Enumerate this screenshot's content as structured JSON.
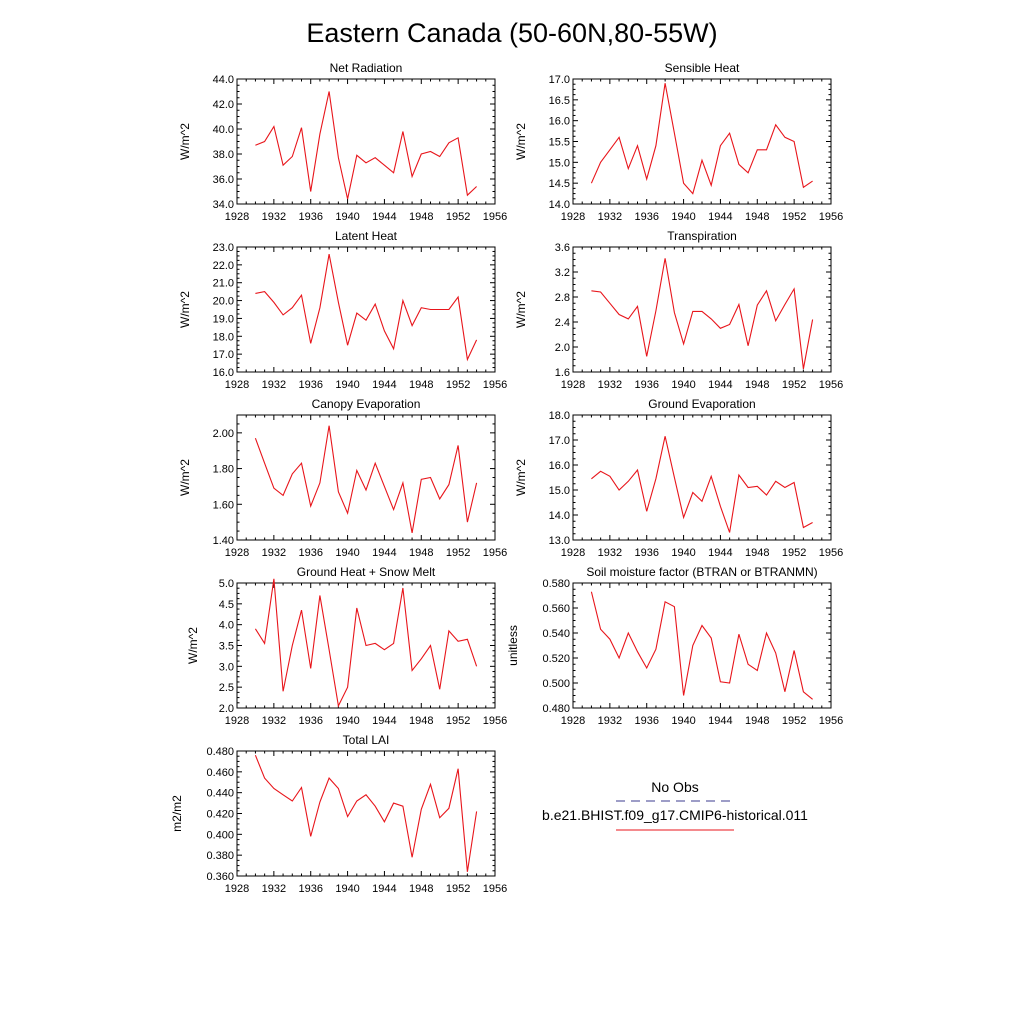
{
  "figure": {
    "title": "Eastern Canada (50-60N,80-55W)",
    "x_ticks": [
      "1928",
      "1932",
      "1936",
      "1940",
      "1944",
      "1948",
      "1952",
      "1956"
    ],
    "line_color": "#e8151b",
    "legend": {
      "obs_label": "No Obs",
      "obs_color": "#3b3b8f",
      "case_label": "b.e21.BHIST.f09_g17.CMIP6-historical.011",
      "case_color": "#e8151b"
    }
  },
  "chart_data": [
    {
      "type": "line",
      "title": "Net Radiation",
      "ylabel": "W/m^2",
      "x": [
        1930,
        1931,
        1932,
        1933,
        1934,
        1935,
        1936,
        1937,
        1938,
        1939,
        1940,
        1941,
        1942,
        1943,
        1944,
        1945,
        1946,
        1947,
        1948,
        1949,
        1950,
        1951,
        1952,
        1953,
        1954
      ],
      "values": [
        38.7,
        39.0,
        40.2,
        37.1,
        37.8,
        40.1,
        35.0,
        39.6,
        43.0,
        37.7,
        34.4,
        37.9,
        37.3,
        37.7,
        37.1,
        36.5,
        39.8,
        36.2,
        38.0,
        38.2,
        37.8,
        38.9,
        39.3,
        34.7,
        35.4
      ],
      "xlim": [
        1928,
        1956
      ],
      "ylim": [
        34.0,
        44.0
      ],
      "yticks": [
        "34.0",
        "36.0",
        "38.0",
        "40.0",
        "42.0",
        "44.0"
      ]
    },
    {
      "type": "line",
      "title": "Sensible Heat",
      "ylabel": "W/m^2",
      "x": [
        1930,
        1931,
        1932,
        1933,
        1934,
        1935,
        1936,
        1937,
        1938,
        1939,
        1940,
        1941,
        1942,
        1943,
        1944,
        1945,
        1946,
        1947,
        1948,
        1949,
        1950,
        1951,
        1952,
        1953,
        1954
      ],
      "values": [
        14.5,
        15.0,
        15.3,
        15.6,
        14.85,
        15.4,
        14.6,
        15.4,
        16.9,
        15.7,
        14.5,
        14.25,
        15.05,
        14.45,
        15.4,
        15.7,
        14.95,
        14.75,
        15.3,
        15.3,
        15.9,
        15.6,
        15.5,
        14.4,
        14.55
      ],
      "xlim": [
        1928,
        1956
      ],
      "ylim": [
        14.0,
        17.0
      ],
      "yticks": [
        "14.0",
        "14.5",
        "15.0",
        "15.5",
        "16.0",
        "16.5",
        "17.0"
      ]
    },
    {
      "type": "line",
      "title": "Latent Heat",
      "ylabel": "W/m^2",
      "x": [
        1930,
        1931,
        1932,
        1933,
        1934,
        1935,
        1936,
        1937,
        1938,
        1939,
        1940,
        1941,
        1942,
        1943,
        1944,
        1945,
        1946,
        1947,
        1948,
        1949,
        1950,
        1951,
        1952,
        1953,
        1954
      ],
      "values": [
        20.4,
        20.5,
        19.9,
        19.2,
        19.6,
        20.3,
        17.6,
        19.6,
        22.6,
        19.9,
        17.5,
        19.3,
        18.9,
        19.8,
        18.3,
        17.3,
        20.0,
        18.6,
        19.6,
        19.5,
        19.5,
        19.5,
        20.2,
        16.7,
        17.8
      ],
      "xlim": [
        1928,
        1956
      ],
      "ylim": [
        16.0,
        23.0
      ],
      "yticks": [
        "16.0",
        "17.0",
        "18.0",
        "19.0",
        "20.0",
        "21.0",
        "22.0",
        "23.0"
      ]
    },
    {
      "type": "line",
      "title": "Transpiration",
      "ylabel": "W/m^2",
      "x": [
        1930,
        1931,
        1932,
        1933,
        1934,
        1935,
        1936,
        1937,
        1938,
        1939,
        1940,
        1941,
        1942,
        1943,
        1944,
        1945,
        1946,
        1947,
        1948,
        1949,
        1950,
        1951,
        1952,
        1953,
        1954
      ],
      "values": [
        2.9,
        2.88,
        2.7,
        2.52,
        2.45,
        2.65,
        1.85,
        2.58,
        3.42,
        2.55,
        2.05,
        2.57,
        2.57,
        2.45,
        2.3,
        2.36,
        2.68,
        2.02,
        2.67,
        2.9,
        2.42,
        2.68,
        2.93,
        1.65,
        2.44
      ],
      "xlim": [
        1928,
        1956
      ],
      "ylim": [
        1.6,
        3.6
      ],
      "yticks": [
        "1.6",
        "2.0",
        "2.4",
        "2.8",
        "3.2",
        "3.6"
      ]
    },
    {
      "type": "line",
      "title": "Canopy Evaporation",
      "ylabel": "W/m^2",
      "x": [
        1930,
        1931,
        1932,
        1933,
        1934,
        1935,
        1936,
        1937,
        1938,
        1939,
        1940,
        1941,
        1942,
        1943,
        1944,
        1945,
        1946,
        1947,
        1948,
        1949,
        1950,
        1951,
        1952,
        1953,
        1954
      ],
      "values": [
        1.97,
        1.83,
        1.69,
        1.65,
        1.77,
        1.83,
        1.59,
        1.72,
        2.04,
        1.67,
        1.55,
        1.79,
        1.68,
        1.83,
        1.7,
        1.57,
        1.72,
        1.44,
        1.74,
        1.75,
        1.63,
        1.71,
        1.93,
        1.5,
        1.72
      ],
      "xlim": [
        1928,
        1956
      ],
      "ylim": [
        1.4,
        2.1
      ],
      "yticks": [
        "1.40",
        "1.60",
        "1.80",
        "2.00"
      ]
    },
    {
      "type": "line",
      "title": "Ground Evaporation",
      "ylabel": "W/m^2",
      "x": [
        1930,
        1931,
        1932,
        1933,
        1934,
        1935,
        1936,
        1937,
        1938,
        1939,
        1940,
        1941,
        1942,
        1943,
        1944,
        1945,
        1946,
        1947,
        1948,
        1949,
        1950,
        1951,
        1952,
        1953,
        1954
      ],
      "values": [
        15.45,
        15.75,
        15.55,
        15.0,
        15.35,
        15.8,
        14.15,
        15.45,
        17.15,
        15.5,
        13.9,
        14.9,
        14.55,
        15.55,
        14.35,
        13.3,
        15.6,
        15.1,
        15.15,
        14.8,
        15.35,
        15.1,
        15.3,
        13.5,
        13.7
      ],
      "xlim": [
        1928,
        1956
      ],
      "ylim": [
        13.0,
        18.0
      ],
      "yticks": [
        "13.0",
        "14.0",
        "15.0",
        "16.0",
        "17.0",
        "18.0"
      ]
    },
    {
      "type": "line",
      "title": "Ground Heat + Snow Melt",
      "ylabel": "W/m^2",
      "x": [
        1930,
        1931,
        1932,
        1933,
        1934,
        1935,
        1936,
        1937,
        1938,
        1939,
        1940,
        1941,
        1942,
        1943,
        1944,
        1945,
        1946,
        1947,
        1948,
        1949,
        1950,
        1951,
        1952,
        1953,
        1954
      ],
      "values": [
        3.9,
        3.55,
        5.1,
        2.4,
        3.5,
        4.35,
        2.95,
        4.7,
        3.4,
        2.05,
        2.5,
        4.4,
        3.5,
        3.55,
        3.4,
        3.55,
        4.88,
        2.9,
        3.18,
        3.5,
        2.45,
        3.85,
        3.6,
        3.65,
        3.0
      ],
      "xlim": [
        1928,
        1956
      ],
      "ylim": [
        2.0,
        5.0
      ],
      "yticks": [
        "2.0",
        "2.5",
        "3.0",
        "3.5",
        "4.0",
        "4.5",
        "5.0"
      ]
    },
    {
      "type": "line",
      "title": "Soil moisture factor (BTRAN or BTRANMN)",
      "ylabel": "unitless",
      "x": [
        1930,
        1931,
        1932,
        1933,
        1934,
        1935,
        1936,
        1937,
        1938,
        1939,
        1940,
        1941,
        1942,
        1943,
        1944,
        1945,
        1946,
        1947,
        1948,
        1949,
        1950,
        1951,
        1952,
        1953,
        1954
      ],
      "values": [
        0.573,
        0.543,
        0.535,
        0.52,
        0.54,
        0.525,
        0.512,
        0.527,
        0.565,
        0.561,
        0.49,
        0.53,
        0.546,
        0.536,
        0.501,
        0.5,
        0.539,
        0.515,
        0.51,
        0.54,
        0.524,
        0.493,
        0.526,
        0.493,
        0.487
      ],
      "xlim": [
        1928,
        1956
      ],
      "ylim": [
        0.48,
        0.58
      ],
      "yticks": [
        "0.480",
        "0.500",
        "0.520",
        "0.540",
        "0.560",
        "0.580"
      ]
    },
    {
      "type": "line",
      "title": "Total LAI",
      "ylabel": "m2/m2",
      "x": [
        1930,
        1931,
        1932,
        1933,
        1934,
        1935,
        1936,
        1937,
        1938,
        1939,
        1940,
        1941,
        1942,
        1943,
        1944,
        1945,
        1946,
        1947,
        1948,
        1949,
        1950,
        1951,
        1952,
        1953,
        1954
      ],
      "values": [
        0.476,
        0.454,
        0.444,
        0.438,
        0.432,
        0.445,
        0.398,
        0.431,
        0.454,
        0.444,
        0.417,
        0.432,
        0.438,
        0.427,
        0.412,
        0.43,
        0.427,
        0.378,
        0.424,
        0.448,
        0.416,
        0.425,
        0.463,
        0.364,
        0.422
      ],
      "xlim": [
        1928,
        1956
      ],
      "ylim": [
        0.36,
        0.48
      ],
      "yticks": [
        "0.360",
        "0.380",
        "0.400",
        "0.420",
        "0.440",
        "0.460",
        "0.480"
      ]
    }
  ]
}
